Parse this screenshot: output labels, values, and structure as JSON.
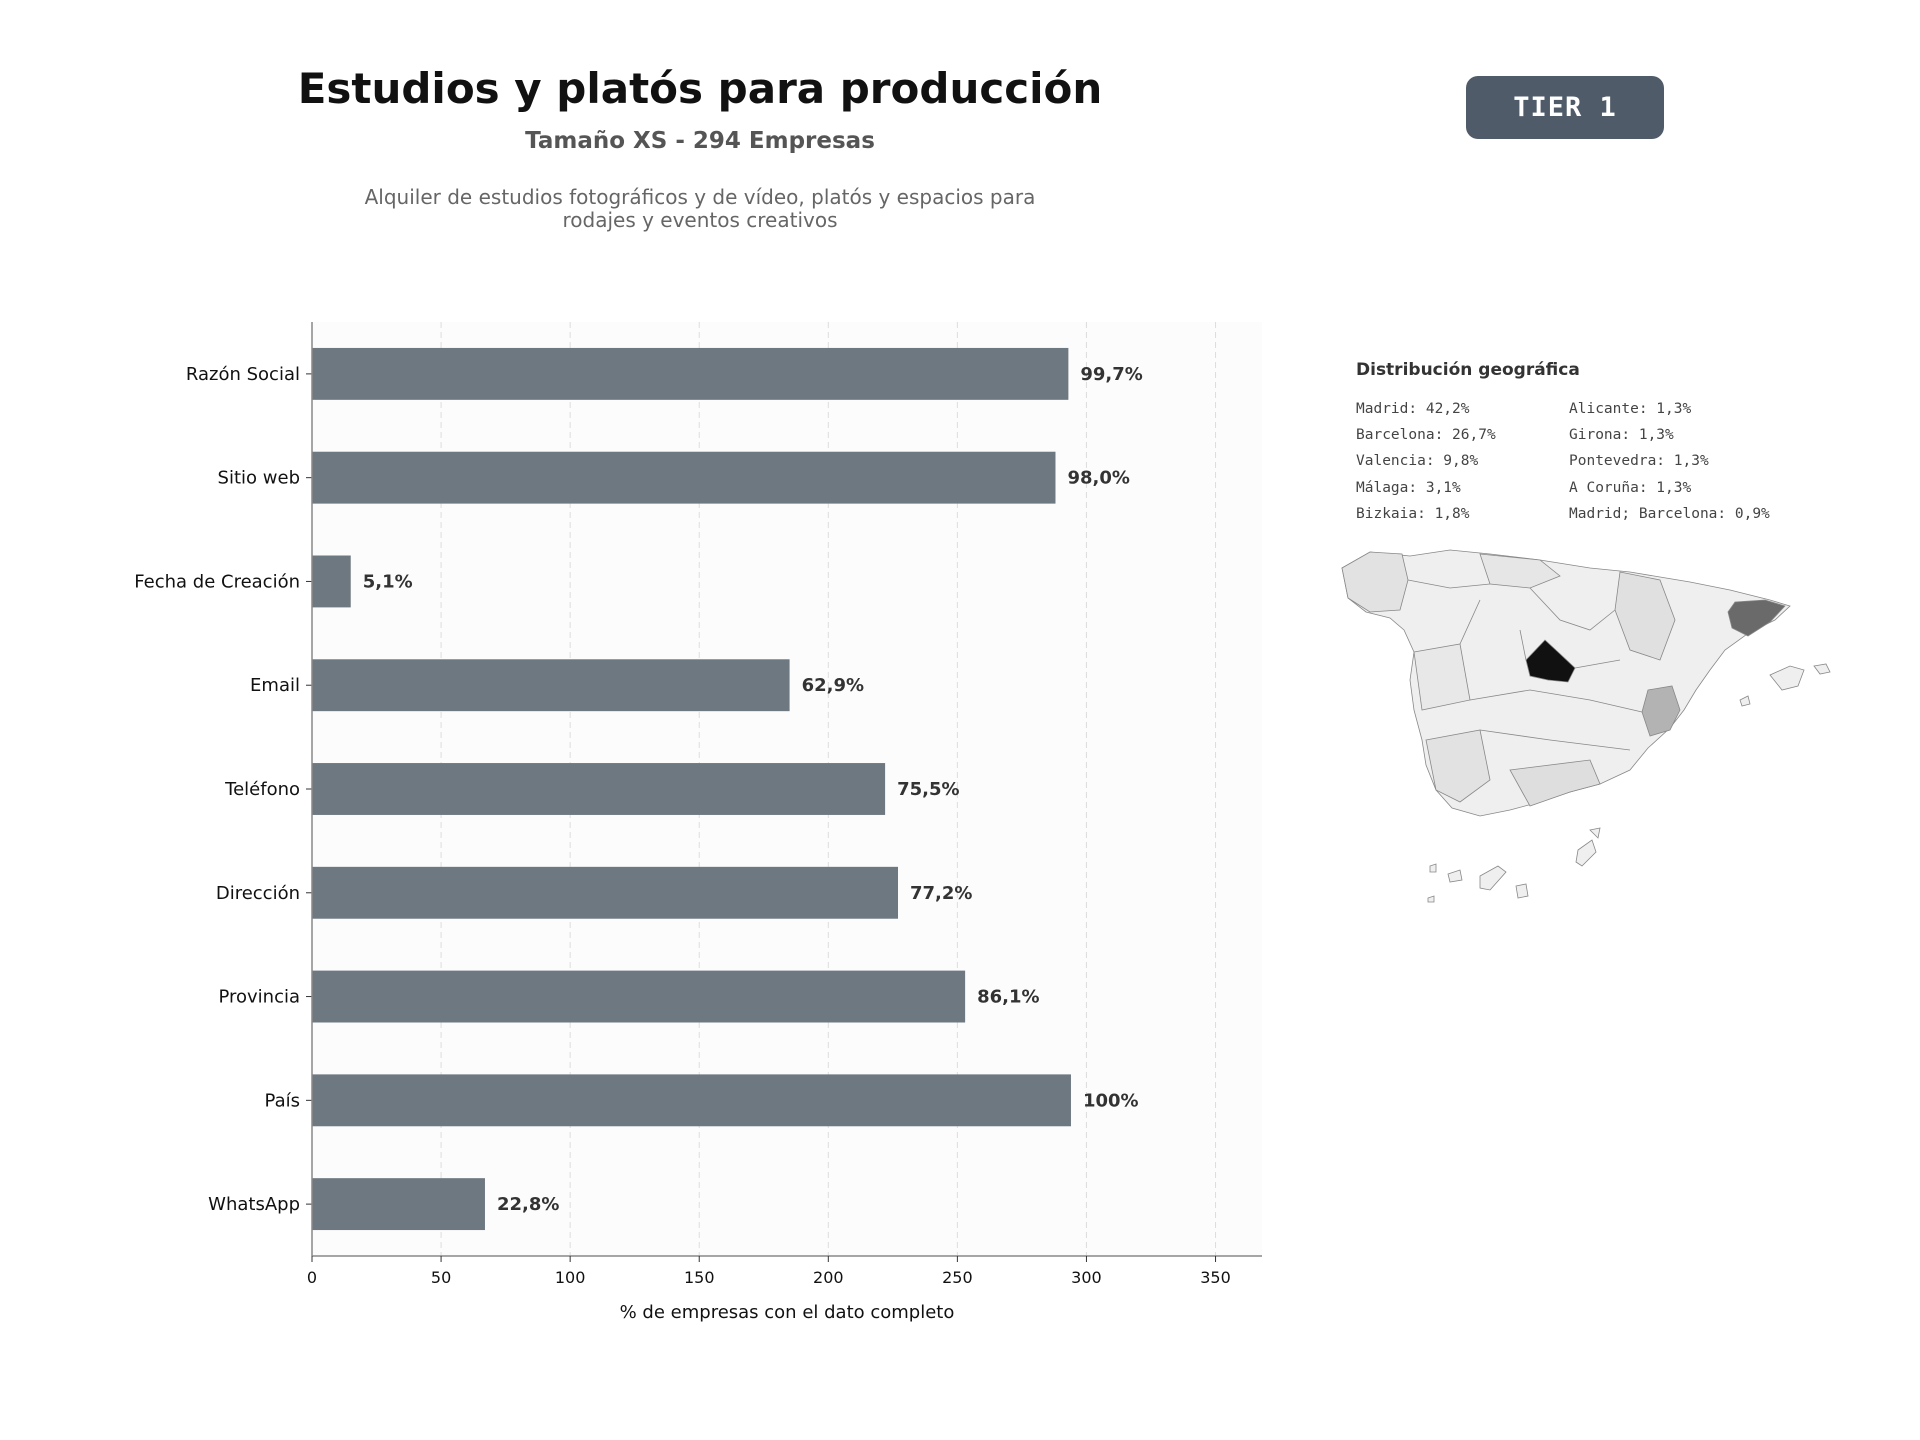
{
  "header": {
    "title": "Estudios y platós para producción",
    "subtitle": "Tamaño XS - 294 Empresas",
    "description_line1": "Alquiler de estudios fotográficos y de vídeo, platós y espacios para",
    "description_line2": "rodajes y eventos creativos",
    "tier_badge": "TIER 1"
  },
  "chart_data": {
    "type": "bar",
    "orientation": "horizontal",
    "categories": [
      "Razón Social",
      "Sitio web",
      "Fecha de Creación",
      "Email",
      "Teléfono",
      "Dirección",
      "Provincia",
      "País",
      "WhatsApp"
    ],
    "values": [
      293,
      288,
      15,
      185,
      222,
      227,
      253,
      294,
      67
    ],
    "value_labels": [
      "99,7%",
      "98,0%",
      "5,1%",
      "62,9%",
      "75,5%",
      "77,2%",
      "86,1%",
      "100%",
      "22,8%"
    ],
    "xlabel": "% de empresas con el dato completo",
    "ylabel": "",
    "xlim": [
      0,
      368
    ],
    "xticks": [
      0,
      50,
      100,
      150,
      200,
      250,
      300,
      350
    ],
    "grid": "vertical dashed",
    "bar_color": "#6e7881"
  },
  "geo": {
    "title": "Distribución geográfica",
    "col1": [
      "Madrid: 42,2%",
      "Barcelona: 26,7%",
      "Valencia: 9,8%",
      "Málaga: 3,1%",
      "Bizkaia: 1,8%"
    ],
    "col2": [
      "Alicante: 1,3%",
      "Girona: 1,3%",
      "Pontevedra: 1,3%",
      "A Coruña: 1,3%",
      "Madrid; Barcelona: 0,9%"
    ]
  }
}
